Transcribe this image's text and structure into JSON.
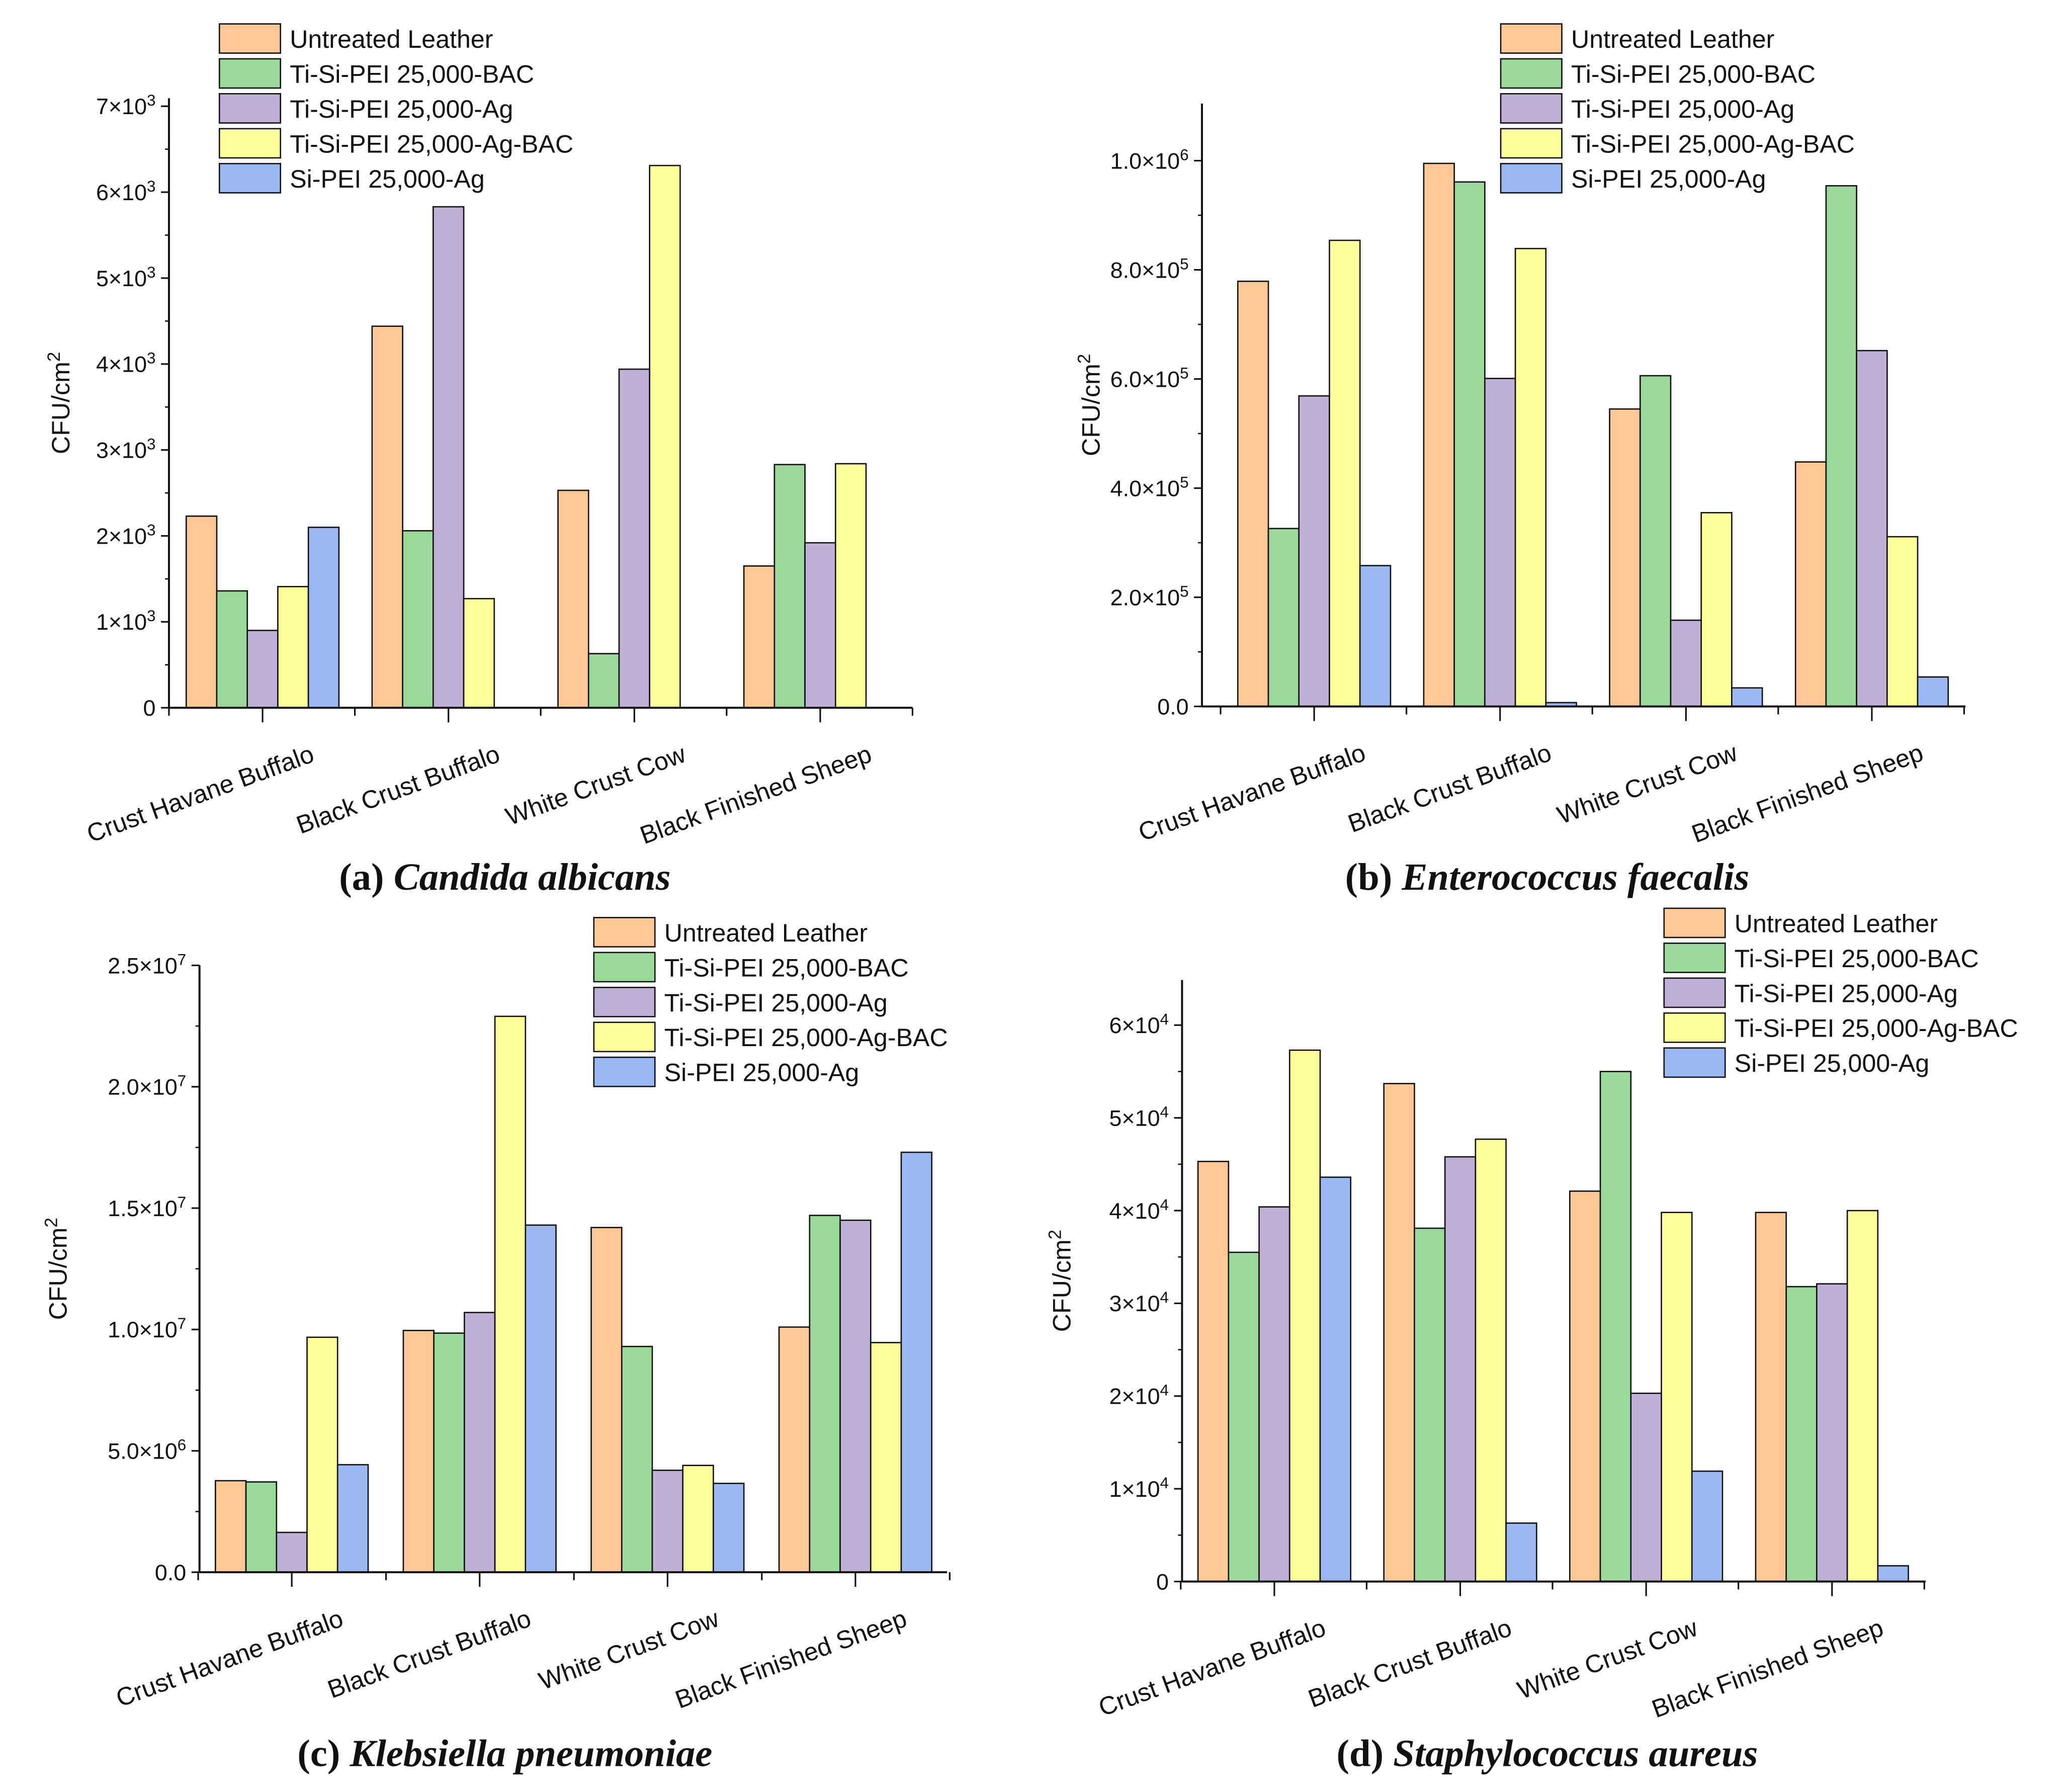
{
  "colors": {
    "Untreated Leather": "#FBC896",
    "Ti-Si-PEI 25,000-BAC": "#9BD99B",
    "Ti-Si-PEI 25,000-Ag": "#C0B0D6",
    "Ti-Si-PEI 25,000-Ag-BAC": "#FEFE9A",
    "Si-PEI 25,000-Ag": "#9BB8F2"
  },
  "chart_data": [
    {
      "type": "bar",
      "caption_label": "(a)",
      "caption_species": "Candida albicans",
      "ylabel": "CFU/cm^2",
      "ylim": [
        0,
        7000
      ],
      "yticks": [
        0,
        1000,
        2000,
        3000,
        4000,
        5000,
        6000,
        7000
      ],
      "ytick_labels": [
        "0",
        "1×10^3",
        "2×10^3",
        "3×10^3",
        "4×10^3",
        "5×10^3",
        "6×10^3",
        "7×10^3"
      ],
      "categories": [
        "Crust Havane Buffalo",
        "Black Crust Buffalo",
        "White Crust Cow",
        "Black Finished Sheep"
      ],
      "legend": "top-left",
      "series": [
        {
          "name": "Untreated Leather",
          "values": [
            2230,
            4440,
            2530,
            1650
          ]
        },
        {
          "name": "Ti-Si-PEI 25,000-BAC",
          "values": [
            1360,
            2060,
            630,
            2830
          ]
        },
        {
          "name": "Ti-Si-PEI 25,000-Ag",
          "values": [
            900,
            5830,
            3940,
            1920
          ]
        },
        {
          "name": "Ti-Si-PEI 25,000-Ag-BAC",
          "values": [
            1410,
            1270,
            6310,
            2840
          ]
        },
        {
          "name": "Si-PEI 25,000-Ag",
          "values": [
            2100,
            0,
            0,
            0
          ]
        }
      ]
    },
    {
      "type": "bar",
      "caption_label": "(b)",
      "caption_species": "Enterococcus faecalis",
      "ylabel": "CFU/cm^2",
      "ylim": [
        0,
        1100000
      ],
      "yticks": [
        0,
        200000,
        400000,
        600000,
        800000,
        1000000
      ],
      "ytick_labels": [
        "0.0",
        "2.0×10^5",
        "4.0×10^5",
        "6.0×10^5",
        "8.0×10^5",
        "1.0×10^6"
      ],
      "categories": [
        "Crust Havane Buffalo",
        "Black Crust Buffalo",
        "White Crust Cow",
        "Black Finished Sheep"
      ],
      "legend": "top-center",
      "series": [
        {
          "name": "Untreated Leather",
          "values": [
            779000,
            995000,
            545000,
            448000
          ]
        },
        {
          "name": "Ti-Si-PEI 25,000-BAC",
          "values": [
            326000,
            961000,
            606000,
            954000
          ]
        },
        {
          "name": "Ti-Si-PEI 25,000-Ag",
          "values": [
            569000,
            601000,
            158000,
            652000
          ]
        },
        {
          "name": "Ti-Si-PEI 25,000-Ag-BAC",
          "values": [
            854000,
            839000,
            355000,
            311000
          ]
        },
        {
          "name": "Si-PEI 25,000-Ag",
          "values": [
            258000,
            7000,
            34000,
            54000
          ]
        }
      ]
    },
    {
      "type": "bar",
      "caption_label": "(c)",
      "caption_species": "Klebsiella pneumoniae",
      "ylabel": "CFU/cm^2",
      "ylim": [
        0,
        25000000
      ],
      "yticks": [
        0,
        5000000,
        10000000,
        15000000,
        20000000,
        25000000
      ],
      "ytick_labels": [
        "0.0",
        "5.0×10^6",
        "1.0×10^7",
        "1.5×10^7",
        "2.0×10^7",
        "2.5×10^7"
      ],
      "categories": [
        "Crust Havane Buffalo",
        "Black Crust Buffalo",
        "White Crust Cow",
        "Black Finished Sheep"
      ],
      "legend": "top-right",
      "series": [
        {
          "name": "Untreated Leather",
          "values": [
            3770000,
            9960000,
            14200000,
            10100000
          ]
        },
        {
          "name": "Ti-Si-PEI 25,000-BAC",
          "values": [
            3720000,
            9850000,
            9300000,
            14700000
          ]
        },
        {
          "name": "Ti-Si-PEI 25,000-Ag",
          "values": [
            1640000,
            10700000,
            4200000,
            14500000
          ]
        },
        {
          "name": "Ti-Si-PEI 25,000-Ag-BAC",
          "values": [
            9680000,
            22900000,
            4400000,
            9460000
          ]
        },
        {
          "name": "Si-PEI 25,000-Ag",
          "values": [
            4430000,
            14300000,
            3660000,
            17300000
          ]
        }
      ]
    },
    {
      "type": "bar",
      "caption_label": "(d)",
      "caption_species": "Staphylococcus aureus",
      "ylabel": "CFU/cm^2",
      "ylim": [
        0,
        65000
      ],
      "yticks": [
        0,
        10000,
        20000,
        30000,
        40000,
        50000,
        60000
      ],
      "ytick_labels": [
        "0",
        "1×10^4",
        "2×10^4",
        "3×10^4",
        "4×10^4",
        "5×10^4",
        "6×10^4"
      ],
      "categories": [
        "Crust Havane Buffalo",
        "Black Crust Buffalo",
        "White Crust Cow",
        "Black Finished Sheep"
      ],
      "legend": "top-right",
      "series": [
        {
          "name": "Untreated Leather",
          "values": [
            45300,
            53700,
            42100,
            39800
          ]
        },
        {
          "name": "Ti-Si-PEI 25,000-BAC",
          "values": [
            35500,
            38100,
            55000,
            31800
          ]
        },
        {
          "name": "Ti-Si-PEI 25,000-Ag",
          "values": [
            40400,
            45800,
            20300,
            32100
          ]
        },
        {
          "name": "Ti-Si-PEI 25,000-Ag-BAC",
          "values": [
            57300,
            47700,
            39800,
            40000
          ]
        },
        {
          "name": "Si-PEI 25,000-Ag",
          "values": [
            43600,
            6300,
            11900,
            1700
          ]
        }
      ]
    }
  ]
}
